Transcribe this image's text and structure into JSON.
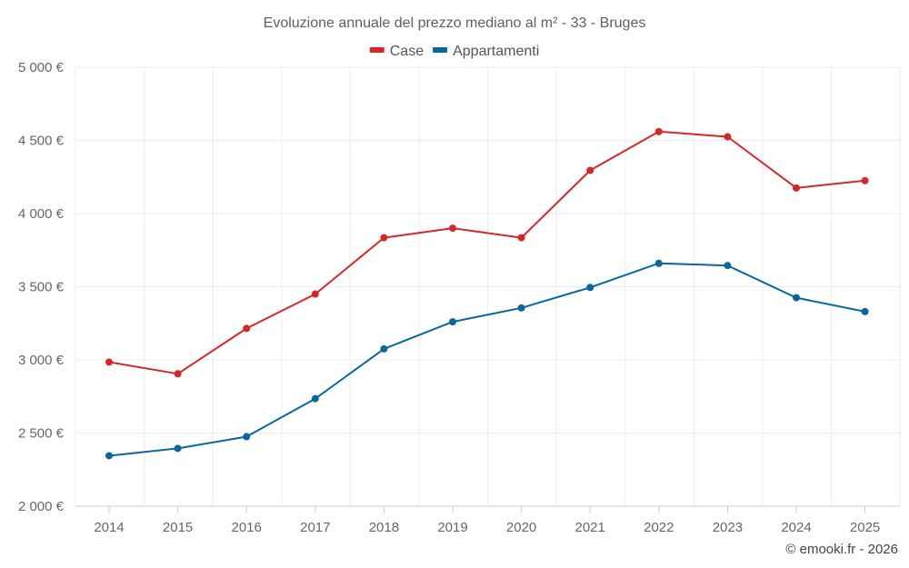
{
  "chart_data": {
    "type": "line",
    "title": "Evoluzione annuale del prezzo mediano al m² - 33 - Bruges",
    "categories": [
      "2014",
      "2015",
      "2016",
      "2017",
      "2018",
      "2019",
      "2020",
      "2021",
      "2022",
      "2023",
      "2024",
      "2025"
    ],
    "series": [
      {
        "name": "Case",
        "color": "#d62728",
        "values": [
          2985,
          2905,
          3215,
          3450,
          3835,
          3900,
          3835,
          4295,
          4560,
          4525,
          4175,
          4225
        ]
      },
      {
        "name": "Appartamenti",
        "color": "#08679e",
        "values": [
          2345,
          2395,
          2475,
          2735,
          3075,
          3260,
          3355,
          3495,
          3660,
          3645,
          3425,
          3330
        ]
      }
    ],
    "ylim": [
      2000,
      5000
    ],
    "yticks": [
      2000,
      2500,
      3000,
      3500,
      4000,
      4500,
      5000
    ],
    "ytick_labels": [
      "2 000 €",
      "2 500 €",
      "3 000 €",
      "3 500 €",
      "4 000 €",
      "4 500 €",
      "5 000 €"
    ],
    "legend_position": "top-center",
    "grid": true
  },
  "credit": "© emooki.fr - 2026"
}
